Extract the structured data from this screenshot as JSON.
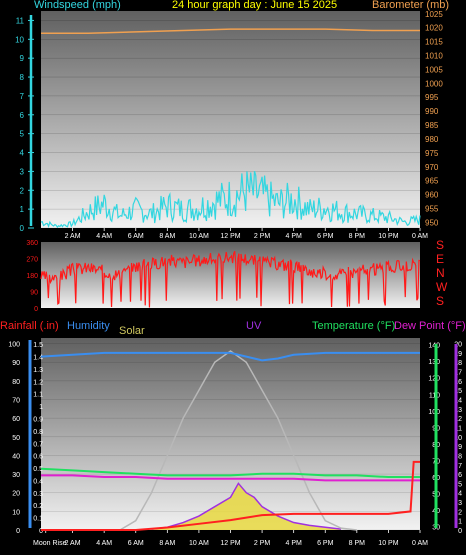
{
  "header": {
    "left_label": "Windspeed (mph)",
    "title": "24 hour graph day : June 15 2025",
    "right_label": "Barometer (mb)"
  },
  "direction_labels": [
    "S",
    "E",
    "N",
    "W",
    "S"
  ],
  "legend": {
    "rainfall": "Rainfall (.in)",
    "humidity": "Humidity",
    "solar": "Solar",
    "uv": "UV",
    "temperature": "Temperature (°F)",
    "dewpoint": "Dew Point (°F)"
  },
  "colors": {
    "wind": "#33d6e0",
    "barometer": "#f0a050",
    "direction": "#ff1a1a",
    "rainfall": "#ff2020",
    "humidity": "#3a8ef0",
    "solar_curve": "#b8b8b8",
    "solar_fill": "#e8d840",
    "uv": "#a030e0",
    "temperature": "#20e060",
    "dewpoint": "#e020d0",
    "title": "#ffff00",
    "axis_text": "#ffffff"
  },
  "chart_data": [
    {
      "type": "line",
      "title": "24 hour graph day : June 15 2025",
      "xlabel": "",
      "x_ticks": [
        "2 AM",
        "4 AM",
        "6 AM",
        "8 AM",
        "10 AM",
        "12 PM",
        "2 PM",
        "4 PM",
        "6 PM",
        "8 PM",
        "10 PM",
        "0 AM"
      ],
      "y_left": {
        "label": "Windspeed (mph)",
        "ticks": [
          0,
          1,
          2,
          3,
          4,
          5,
          6,
          7,
          8,
          9,
          10,
          11
        ],
        "ylim": [
          0,
          11.5
        ]
      },
      "y_right": {
        "label": "Barometer (mb)",
        "ticks": [
          950,
          955,
          960,
          965,
          970,
          975,
          980,
          985,
          990,
          995,
          1000,
          1005,
          1010,
          1015,
          1020,
          1025
        ],
        "ylim": [
          948,
          1026
        ]
      },
      "series": [
        {
          "name": "Windspeed (mph)",
          "axis": "left",
          "x": [
            0,
            1,
            2,
            3,
            4,
            5,
            6,
            7,
            8,
            9,
            10,
            11,
            12,
            13,
            14,
            15,
            16,
            17,
            18,
            19,
            20,
            21,
            22,
            23,
            24
          ],
          "values": [
            0.3,
            0.1,
            0.2,
            0.8,
            1.2,
            0.6,
            0.9,
            0.7,
            1.1,
            0.9,
            1.0,
            1.3,
            1.5,
            1.8,
            1.6,
            1.2,
            1.4,
            0.9,
            1.0,
            0.8,
            0.7,
            0.6,
            0.5,
            0.3,
            0.4
          ]
        },
        {
          "name": "Barometer (mb)",
          "axis": "right",
          "x": [
            0,
            3,
            6,
            9,
            12,
            15,
            18,
            21,
            24
          ],
          "values": [
            1018,
            1018,
            1018.5,
            1019,
            1019.5,
            1019.5,
            1019.5,
            1019,
            1019
          ]
        }
      ]
    },
    {
      "type": "line",
      "title": "",
      "x_ticks": [
        "2 AM",
        "4 AM",
        "6 AM",
        "8 AM",
        "10 AM",
        "12 PM",
        "2 PM",
        "4 PM",
        "6 PM",
        "8 PM",
        "10 PM",
        "0 AM"
      ],
      "y_left": {
        "ticks": [
          0,
          90,
          180,
          270,
          360
        ],
        "ylim": [
          0,
          360
        ]
      },
      "y_right": {
        "ticks": [
          "S",
          "E",
          "N",
          "W",
          "S"
        ]
      },
      "series": [
        {
          "name": "Wind direction",
          "x": [
            0,
            1,
            2,
            3,
            4,
            5,
            6,
            7,
            8,
            9,
            10,
            11,
            12,
            13,
            14,
            15,
            16,
            17,
            18,
            19,
            20,
            21,
            22,
            23,
            24
          ],
          "values": [
            170,
            160,
            210,
            220,
            200,
            180,
            230,
            240,
            260,
            250,
            260,
            270,
            280,
            270,
            250,
            240,
            230,
            200,
            190,
            180,
            200,
            210,
            220,
            230,
            240
          ]
        }
      ]
    },
    {
      "type": "line",
      "title": "",
      "x_ticks": [
        "Moon Rise",
        "2 AM",
        "4 AM",
        "6 AM",
        "8 AM",
        "10 AM",
        "12 PM",
        "2 PM",
        "4 PM",
        "6 PM",
        "8 PM",
        "10 PM",
        "0 AM"
      ],
      "y_axes": {
        "rainfall": {
          "label": "Rainfall (.in)",
          "ticks": [
            0,
            0.1,
            0.2,
            0.3,
            0.4,
            0.5,
            0.6,
            0.7,
            0.8,
            0.9,
            1,
            1.1,
            1.2,
            1.3,
            1.4,
            1.5
          ],
          "ylim": [
            0,
            1.55
          ]
        },
        "humidity": {
          "label": "Humidity",
          "ticks": [
            0,
            10,
            20,
            30,
            40,
            50,
            60,
            70,
            80,
            90,
            100
          ],
          "ylim": [
            0,
            103
          ]
        },
        "uv": {
          "label": "UV",
          "ticks": [
            0,
            1,
            2,
            3,
            4,
            5,
            6,
            7,
            8,
            9,
            10,
            11,
            12,
            13,
            14,
            15,
            16,
            17,
            18,
            19,
            20
          ],
          "ylim": [
            0,
            20.6
          ]
        },
        "temperature": {
          "label": "Temperature (°F)",
          "ticks": [
            30,
            40,
            50,
            60,
            70,
            80,
            90,
            100,
            110,
            120,
            130,
            140
          ],
          "ylim": [
            28,
            144
          ]
        }
      },
      "series": [
        {
          "name": "Humidity",
          "x": [
            0,
            2,
            4,
            6,
            8,
            10,
            12,
            13,
            14,
            15,
            16,
            18,
            20,
            22,
            24
          ],
          "values": [
            93,
            94,
            95,
            95,
            95,
            95,
            95,
            93,
            91,
            92,
            94,
            95,
            95,
            95,
            95
          ]
        },
        {
          "name": "Temperature (°F)",
          "x": [
            0,
            2,
            4,
            6,
            8,
            10,
            12,
            14,
            16,
            18,
            20,
            22,
            24
          ],
          "values": [
            65,
            64,
            63,
            62,
            61,
            61,
            61,
            62,
            62,
            61,
            61,
            60,
            60
          ]
        },
        {
          "name": "Dew Point (°F)",
          "x": [
            0,
            2,
            4,
            6,
            8,
            10,
            12,
            14,
            16,
            18,
            20,
            22,
            24
          ],
          "values": [
            61,
            61,
            60,
            60,
            59,
            59,
            59,
            59,
            59,
            58,
            58,
            58,
            58
          ]
        },
        {
          "name": "Rainfall (.in)",
          "x": [
            0,
            6,
            8,
            10,
            12,
            13,
            14,
            16,
            18,
            20,
            22,
            23.4,
            23.6,
            24
          ],
          "values": [
            0,
            0,
            0.02,
            0.05,
            0.08,
            0.1,
            0.12,
            0.13,
            0.13,
            0.13,
            0.13,
            0.15,
            0.55,
            0.55
          ]
        },
        {
          "name": "Solar",
          "x": [
            5,
            6,
            7,
            8,
            9,
            10,
            11,
            12,
            13,
            14,
            15,
            16,
            17,
            18,
            19,
            20
          ],
          "values": [
            0,
            1,
            4,
            8,
            12,
            15,
            18,
            19.2,
            18,
            15,
            12,
            8,
            4,
            1,
            0.2,
            0
          ]
        },
        {
          "name": "UV",
          "x": [
            7,
            8,
            9,
            10,
            11,
            12,
            12.5,
            13,
            13.5,
            14,
            15,
            16,
            17,
            18,
            19
          ],
          "values": [
            0.1,
            0.3,
            0.8,
            1.5,
            2.5,
            3.5,
            5.0,
            4.0,
            3.5,
            2.5,
            1.5,
            0.8,
            0.5,
            0.3,
            0.1
          ]
        }
      ]
    }
  ]
}
